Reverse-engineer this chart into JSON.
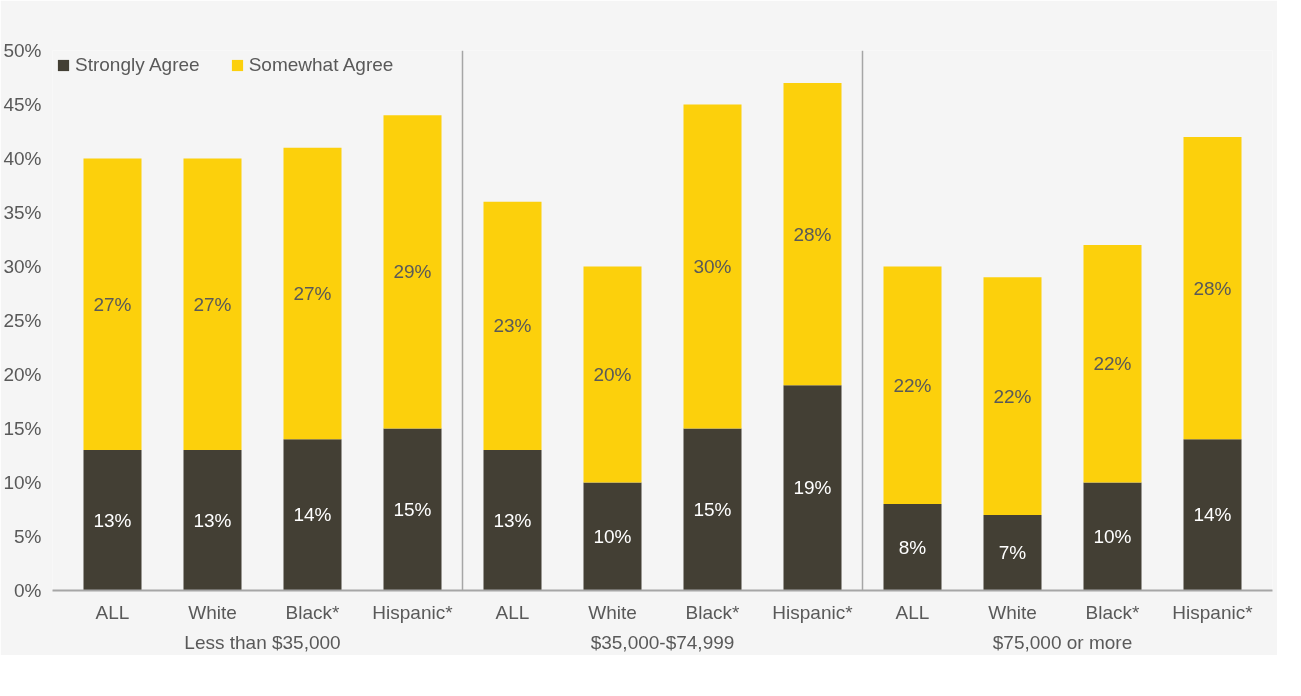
{
  "chart_data": {
    "type": "bar",
    "stacked": true,
    "categories": [
      "ALL",
      "White",
      "Black*",
      "Hispanic*",
      "ALL",
      "White",
      "Black*",
      "Hispanic*",
      "ALL",
      "White",
      "Black*",
      "Hispanic*"
    ],
    "series": [
      {
        "name": "Strongly Agree",
        "color": "#433f34",
        "values": [
          13,
          13,
          14,
          15,
          13,
          10,
          15,
          19,
          8,
          7,
          10,
          14
        ],
        "value_labels": [
          "13%",
          "13%",
          "14%",
          "15%",
          "13%",
          "10%",
          "15%",
          "19%",
          "8%",
          "7%",
          "10%",
          "14%"
        ]
      },
      {
        "name": "Somewhat Agree",
        "color": "#fcd00c",
        "values": [
          27,
          27,
          27,
          29,
          23,
          20,
          30,
          28,
          22,
          22,
          22,
          28
        ],
        "value_labels": [
          "27%",
          "27%",
          "27%",
          "29%",
          "23%",
          "20%",
          "30%",
          "28%",
          "22%",
          "22%",
          "22%",
          "28%"
        ]
      }
    ],
    "annotations": [
      "Less than $35,000",
      "$35,000-$74,999",
      "$75,000 or more"
    ],
    "ylim": [
      0,
      50
    ],
    "yticks": [
      {
        "value": 0,
        "label": "0%"
      },
      {
        "value": 5,
        "label": "5%"
      },
      {
        "value": 10,
        "label": "10%"
      },
      {
        "value": 15,
        "label": "15%"
      },
      {
        "value": 20,
        "label": "20%"
      },
      {
        "value": 25,
        "label": "25%"
      },
      {
        "value": 30,
        "label": "30%"
      },
      {
        "value": 35,
        "label": "35%"
      },
      {
        "value": 40,
        "label": "40%"
      },
      {
        "value": 45,
        "label": "45%"
      },
      {
        "value": 50,
        "label": "50%"
      }
    ],
    "grid": false,
    "legend": "top_left"
  }
}
